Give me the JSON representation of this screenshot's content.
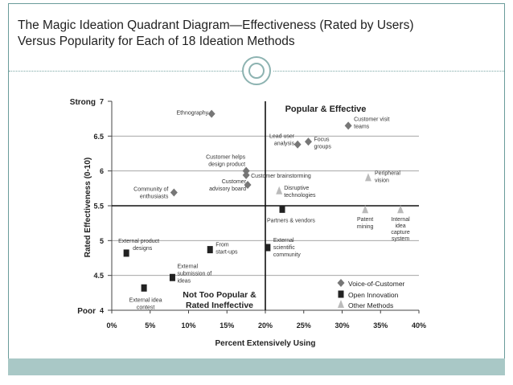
{
  "slide": {
    "title_line1": "The Magic Ideation Quadrant Diagram—Effectiveness (Rated by Users)",
    "title_line2": "Versus Popularity for Each of 18 Ideation Methods"
  },
  "chart_data": {
    "type": "scatter",
    "xlabel": "Percent Extensively Using",
    "ylabel": "Rated Effectiveness (0-10)",
    "xlim": [
      0,
      40
    ],
    "ylim": [
      4,
      7
    ],
    "x_ticks": [
      "0%",
      "5%",
      "10%",
      "15%",
      "20%",
      "25%",
      "30%",
      "35%",
      "40%"
    ],
    "y_ticks": [
      {
        "value": 7,
        "label": "7",
        "qualifier": "Strong"
      },
      {
        "value": 6.5,
        "label": "6.5",
        "qualifier": ""
      },
      {
        "value": 6,
        "label": "6",
        "qualifier": ""
      },
      {
        "value": 5.5,
        "label": "5.5",
        "qualifier": ""
      },
      {
        "value": 5,
        "label": "5",
        "qualifier": ""
      },
      {
        "value": 4.5,
        "label": "4.5",
        "qualifier": ""
      },
      {
        "value": 4,
        "label": "4",
        "qualifier": "Poor"
      }
    ],
    "divider_x": 20,
    "divider_y": 5.5,
    "quadrant_labels": {
      "top_right": "Popular & Effective",
      "bottom_left_line1": "Not Too Popular &",
      "bottom_left_line2": "Rated Ineffective"
    },
    "legend": [
      {
        "name": "Voice-of-Customer",
        "marker": "diamond"
      },
      {
        "name": "Open Innovation",
        "marker": "square"
      },
      {
        "name": "Other Methods",
        "marker": "triangle"
      }
    ],
    "series": [
      {
        "name": "Voice-of-Customer",
        "marker": "diamond",
        "color": "#777777",
        "points": [
          {
            "label": "Ethnography",
            "x": 13,
            "y": 6.82
          },
          {
            "label": "Customer visit teams",
            "x": 30.8,
            "y": 6.65
          },
          {
            "label": "Lead user analysis",
            "x": 24.2,
            "y": 6.38
          },
          {
            "label": "Focus groups",
            "x": 25.6,
            "y": 6.42
          },
          {
            "label": "Customer helps design product",
            "x": 17.5,
            "y": 6.0
          },
          {
            "label": "Customer brainstorming",
            "x": 17.5,
            "y": 5.94
          },
          {
            "label": "Customer advisory board",
            "x": 17.7,
            "y": 5.8
          },
          {
            "label": "Community of enthusiasts",
            "x": 8.1,
            "y": 5.69
          }
        ]
      },
      {
        "name": "Open Innovation",
        "marker": "square",
        "color": "#222222",
        "points": [
          {
            "label": "Partners & vendors",
            "x": 22.2,
            "y": 5.45
          },
          {
            "label": "External product designs",
            "x": 1.9,
            "y": 4.82
          },
          {
            "label": "From start-ups",
            "x": 12.8,
            "y": 4.87
          },
          {
            "label": "External scientific community",
            "x": 20.3,
            "y": 4.9
          },
          {
            "label": "External submission of ideas",
            "x": 7.9,
            "y": 4.47
          },
          {
            "label": "External idea contest",
            "x": 4.2,
            "y": 4.32
          }
        ]
      },
      {
        "name": "Other Methods",
        "marker": "triangle",
        "color": "#bbbbbb",
        "points": [
          {
            "label": "Disruptive technologies",
            "x": 21.8,
            "y": 5.71
          },
          {
            "label": "Peripheral vision",
            "x": 33.4,
            "y": 5.9
          },
          {
            "label": "Patent mining",
            "x": 33.0,
            "y": 5.44
          },
          {
            "label": "Internal idea capture system",
            "x": 37.6,
            "y": 5.44
          }
        ]
      }
    ]
  }
}
